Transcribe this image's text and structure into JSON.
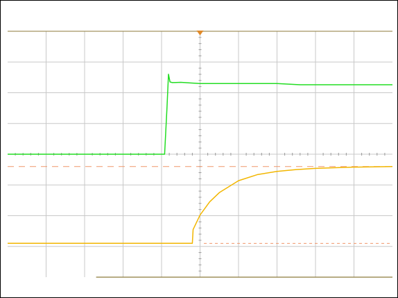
{
  "chart_data": {
    "type": "line",
    "title": "",
    "xlabel": "",
    "ylabel": "",
    "grid": true,
    "legend": "none",
    "xlim": [
      0,
      10
    ],
    "ylim": [
      -4,
      4
    ],
    "x_divisions": 10,
    "y_divisions": 8,
    "trigger_marker_x": 5.0,
    "colors": {
      "grid": "#c8c8c8",
      "axis_ticks": "#9a9a9a",
      "plot_border": "#8c7a3a",
      "ch1": "#22dd22",
      "ch2": "#f2b600",
      "cursor": "#f0956a",
      "marker": "#e08a2a"
    },
    "series": [
      {
        "channel": "ch1",
        "x": [
          0,
          4.08,
          4.14,
          4.18,
          4.22,
          4.28,
          4.5,
          4.7,
          5.0,
          6.0,
          7.0,
          7.3,
          7.6,
          8.0,
          9.0,
          10.0
        ],
        "y": [
          0.0,
          0.0,
          1.5,
          2.6,
          2.35,
          2.33,
          2.34,
          2.32,
          2.3,
          2.3,
          2.3,
          2.28,
          2.26,
          2.26,
          2.26,
          2.26
        ]
      },
      {
        "channel": "ch2",
        "x": [
          0,
          4.8,
          4.82,
          5.0,
          5.25,
          5.5,
          6.0,
          6.5,
          7.0,
          7.5,
          8.0,
          9.0,
          10.0
        ],
        "y": [
          -2.9,
          -2.9,
          -2.45,
          -1.98,
          -1.55,
          -1.25,
          -0.86,
          -0.66,
          -0.56,
          -0.5,
          -0.46,
          -0.42,
          -0.4
        ]
      }
    ],
    "cursors": [
      {
        "orientation": "horizontal",
        "y": -0.4,
        "x_from": 0,
        "x_to": 10
      },
      {
        "orientation": "horizontal",
        "y": -2.9,
        "x_from": 5.1,
        "x_to": 10
      }
    ]
  }
}
